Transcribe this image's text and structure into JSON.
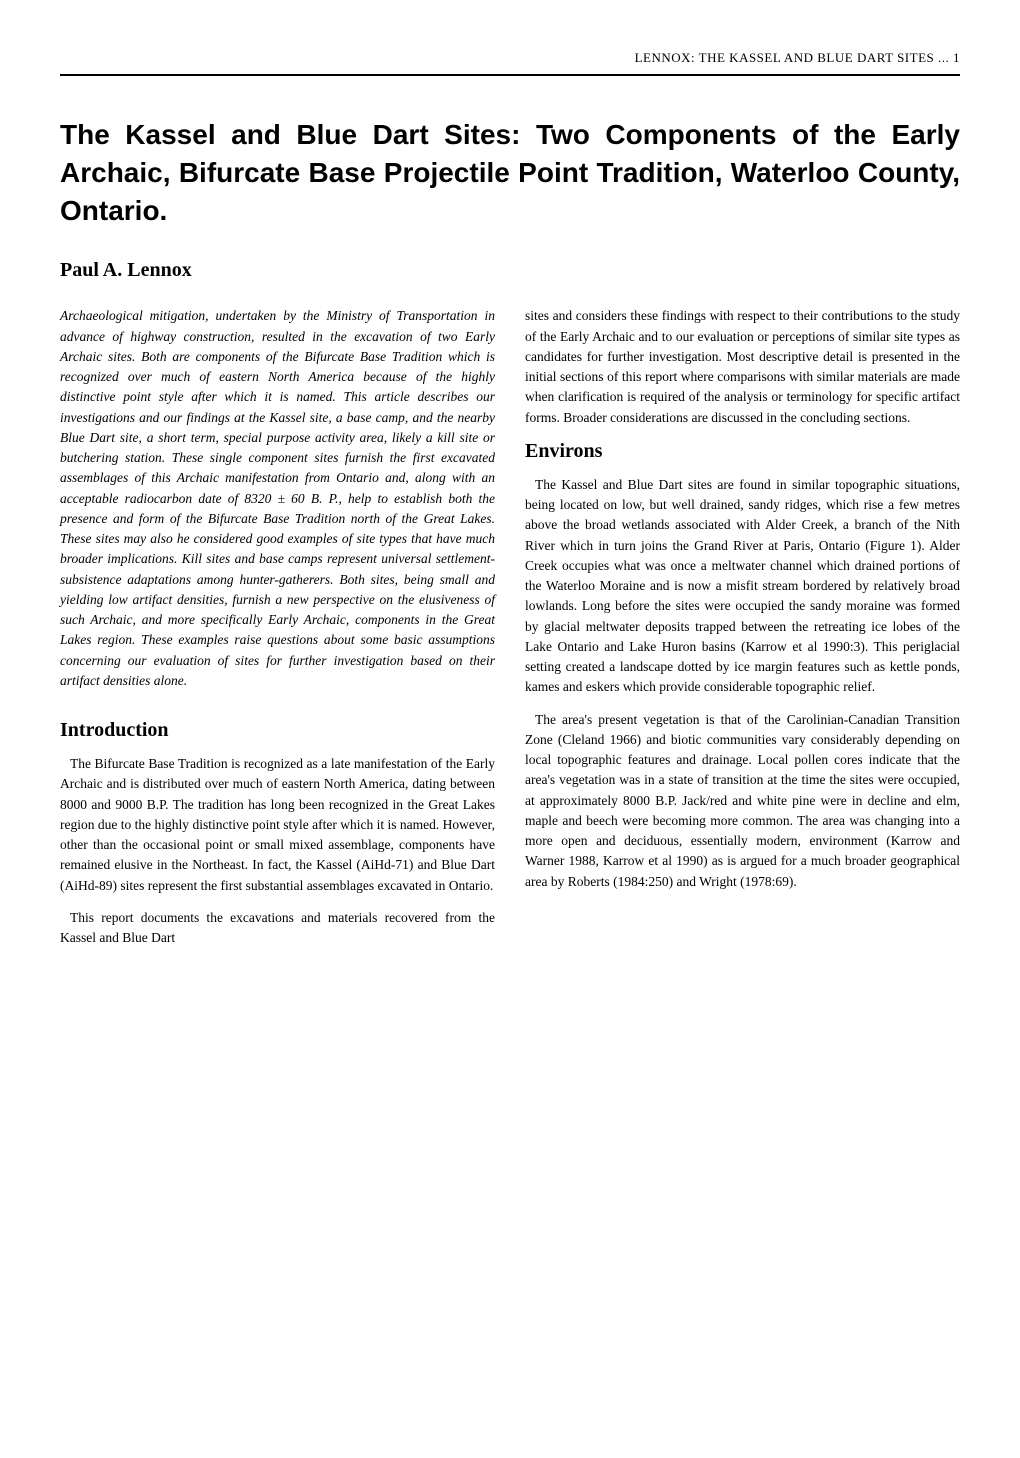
{
  "header": "LENNOX: THE KASSEL AND BLUE DART SITES ... 1",
  "title": "The Kassel and Blue Dart Sites: Two Components of the Early Archaic, Bifurcate Base Projectile Point Tradition, Waterloo County, Ontario.",
  "author": "Paul A. Lennox",
  "left_column": {
    "abstract": "Archaeological mitigation, undertaken by the Ministry of Transportation in advance of highway construction, resulted in the excavation of two Early Archaic sites. Both are components of the Bifurcate Base Tradition which is recognized over much of eastern North America because of the highly distinctive point style after which it is named. This article describes our investigations and our findings at the Kassel site, a base camp, and the nearby Blue Dart site, a short term, special purpose activity area, likely a kill site or butchering station. These single component sites furnish the first excavated assemblages of this Archaic manifestation from Ontario and, along with an acceptable radiocarbon date of 8320 ± 60 B. P., help to establish both the presence and form of the Bifurcate Base Tradition north of the Great Lakes. These sites may also he considered good examples of site types that have much broader implications. Kill sites and base camps represent universal settlement-subsistence adaptations among hunter-gatherers. Both sites, being small and yielding low artifact densities, furnish a new perspective on the elusiveness of such Archaic, and more specifically Early Archaic, components in the Great Lakes region. These examples raise questions about some basic assumptions concerning our evaluation of sites for further investigation based on their artifact densities alone.",
    "intro_heading": "Introduction",
    "intro_p1": "The Bifurcate Base Tradition is recognized as a late manifestation of the Early Archaic and is distributed over much of eastern North America, dating between 8000 and 9000 B.P. The tradition has long been recognized in the Great Lakes region due to the highly distinctive point style after which it is named. However, other than the occasional point or small mixed assemblage, components have remained elusive in the Northeast. In fact, the Kassel (AiHd-71) and Blue Dart (AiHd-89) sites represent the first substantial assemblages excavated in Ontario.",
    "intro_p2": "This report documents the excavations and materials recovered from the Kassel and Blue Dart"
  },
  "right_column": {
    "continuation": "sites and considers these findings with respect to their contributions to the study of the Early Archaic and to our evaluation or perceptions of similar site types as candidates for further investigation. Most descriptive detail is presented in the initial sections of this report where comparisons with similar materials are made when clarification is required of the analysis or terminology for specific artifact forms. Broader considerations are discussed in the concluding sections.",
    "environs_heading": "Environs",
    "environs_p1": "The Kassel and Blue Dart sites are found in similar topographic situations, being located on low, but well drained, sandy ridges, which rise a few metres above the broad wetlands associated with Alder Creek, a branch of the Nith River which in turn joins the Grand River at Paris, Ontario (Figure 1). Alder Creek occupies what was once a meltwater channel which drained portions of the Waterloo Moraine and is now a misfit stream bordered by relatively broad lowlands. Long before the sites were occupied the sandy moraine was formed by glacial meltwater deposits trapped between the retreating ice lobes of the Lake Ontario and Lake Huron basins (Karrow et al 1990:3). This periglacial setting created a landscape dotted by ice margin features such as kettle ponds, kames and eskers which provide considerable topographic relief.",
    "environs_p2": "The area's present vegetation is that of the Carolinian-Canadian Transition Zone (Cleland 1966) and biotic communities vary considerably depending on local topographic features and drainage. Local pollen cores indicate that the area's vegetation was in a state of transition at the time the sites were occupied, at approximately 8000 B.P. Jack/red and white pine were in decline and elm, maple and beech were becoming more common. The area was changing into a more open and deciduous, essentially modern, environment (Karrow and Warner 1988, Karrow et al 1990) as is argued for a much broader geographical area by Roberts (1984:250) and Wright (1978:69)."
  }
}
